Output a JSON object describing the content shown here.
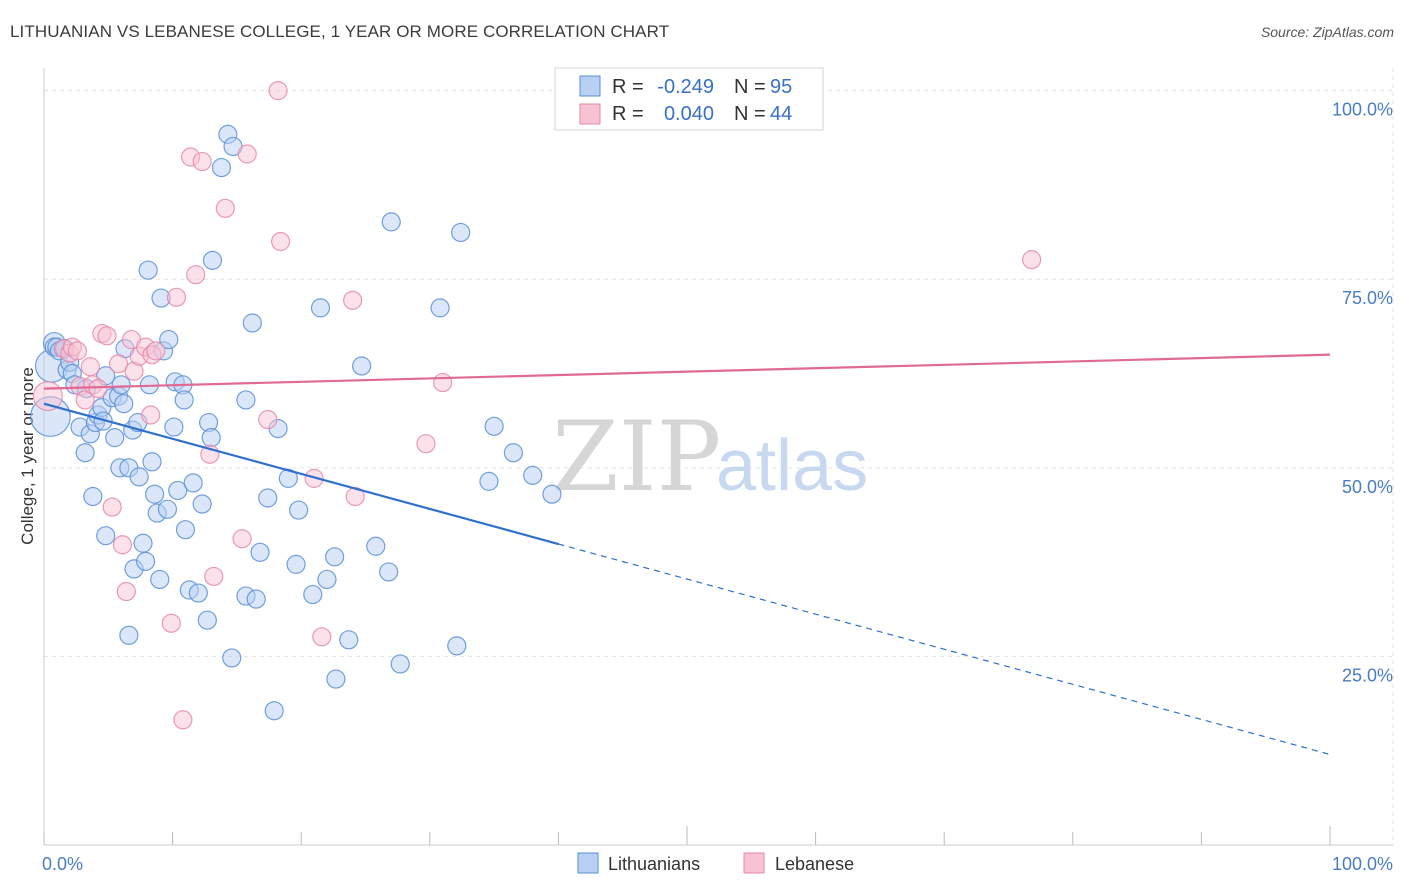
{
  "header": {
    "title": "LITHUANIAN VS LEBANESE COLLEGE, 1 YEAR OR MORE CORRELATION CHART",
    "source": "Source: ZipAtlas.com"
  },
  "watermark": {
    "zip": "ZIP",
    "atlas": "atlas"
  },
  "colors": {
    "blue_fill": "#b7d0f4",
    "blue_stroke": "#5b8fd6",
    "blue_line": "#2f6fce",
    "pink_fill": "#f7c3d3",
    "pink_stroke": "#e48aa9",
    "pink_line": "#e06a92",
    "grid": "#e3e3e3",
    "axis": "#cccccc"
  },
  "legend": {
    "rows": [
      {
        "r_label": "R = ",
        "r_value": "-0.249",
        "n_label": "N = ",
        "n_value": "95"
      },
      {
        "r_label": "R = ",
        "r_value": "0.040",
        "n_label": "N = ",
        "n_value": "44"
      }
    ]
  },
  "chart_data": {
    "type": "scatter",
    "title": "LITHUANIAN VS LEBANESE COLLEGE, 1 YEAR OR MORE CORRELATION CHART",
    "xlabel": "",
    "ylabel": "College, 1 year or more",
    "xlim": [
      0,
      100
    ],
    "ylim": [
      0,
      103
    ],
    "x_tick_labels": [
      "0.0%",
      "100.0%"
    ],
    "y_ticks": [
      25,
      50,
      75,
      100
    ],
    "y_tick_labels": [
      "25.0%",
      "50.0%",
      "75.0%",
      "100.0%"
    ],
    "grid": true,
    "legend_position": "top-center",
    "series": [
      {
        "name": "Lithuanians",
        "r": -0.249,
        "n": 95,
        "trend": {
          "x0": 0,
          "y0": 58.5,
          "x_solid_end": 40,
          "x1": 100,
          "y1": 12.0
        },
        "points": [
          [
            0.5,
            56.8,
            2.2
          ],
          [
            0.6,
            63.5,
            1.8
          ],
          [
            0.8,
            66.5,
            1.2
          ],
          [
            0.8,
            66.0,
            1.0
          ],
          [
            1.0,
            66.0,
            1.0
          ],
          [
            1.2,
            65.5,
            1.0
          ],
          [
            1.6,
            65.8,
            1.0
          ],
          [
            1.8,
            63.0,
            1.0
          ],
          [
            2.0,
            64.0,
            1.0
          ],
          [
            2.2,
            62.5,
            1.0
          ],
          [
            2.4,
            61.0,
            1.0
          ],
          [
            2.8,
            55.4,
            1.0
          ],
          [
            3.2,
            52.0,
            1.0
          ],
          [
            3.3,
            60.5,
            1.0
          ],
          [
            3.6,
            54.5,
            1.0
          ],
          [
            3.8,
            46.2,
            1.0
          ],
          [
            4.0,
            56.0,
            1.0
          ],
          [
            4.2,
            57.0,
            1.0
          ],
          [
            4.5,
            58.0,
            1.0
          ],
          [
            4.6,
            56.2,
            1.0
          ],
          [
            4.8,
            41.0,
            1.0
          ],
          [
            4.8,
            62.2,
            1.0
          ],
          [
            5.3,
            59.3,
            1.0
          ],
          [
            5.5,
            54.0,
            1.0
          ],
          [
            5.8,
            59.5,
            1.0
          ],
          [
            5.9,
            50.0,
            1.0
          ],
          [
            6.0,
            61.0,
            1.0
          ],
          [
            6.2,
            58.5,
            1.0
          ],
          [
            6.3,
            65.8,
            1.0
          ],
          [
            6.6,
            50.0,
            1.0
          ],
          [
            6.6,
            27.8,
            1.0
          ],
          [
            6.9,
            55.0,
            1.0
          ],
          [
            7.0,
            36.6,
            1.0
          ],
          [
            7.3,
            56.0,
            1.0
          ],
          [
            7.4,
            48.8,
            1.0
          ],
          [
            7.7,
            40.0,
            1.0
          ],
          [
            7.9,
            37.6,
            1.0
          ],
          [
            8.1,
            76.2,
            1.0
          ],
          [
            8.2,
            61.0,
            1.0
          ],
          [
            8.4,
            50.8,
            1.0
          ],
          [
            8.6,
            46.5,
            1.0
          ],
          [
            8.8,
            44.0,
            1.0
          ],
          [
            9.0,
            35.2,
            1.0
          ],
          [
            9.1,
            72.5,
            1.0
          ],
          [
            9.3,
            65.5,
            1.0
          ],
          [
            9.6,
            44.5,
            1.0
          ],
          [
            9.7,
            67.0,
            1.0
          ],
          [
            10.1,
            55.4,
            1.0
          ],
          [
            10.2,
            61.4,
            1.0
          ],
          [
            10.4,
            47.0,
            1.0
          ],
          [
            10.8,
            61.0,
            1.0
          ],
          [
            10.9,
            59.0,
            1.0
          ],
          [
            11.0,
            41.8,
            1.0
          ],
          [
            11.3,
            33.8,
            1.0
          ],
          [
            11.6,
            48.0,
            1.0
          ],
          [
            12.0,
            33.4,
            1.0
          ],
          [
            12.3,
            45.2,
            1.0
          ],
          [
            12.7,
            29.8,
            1.0
          ],
          [
            12.8,
            56.0,
            1.0
          ],
          [
            13.0,
            54.0,
            1.0
          ],
          [
            13.1,
            77.5,
            1.0
          ],
          [
            13.8,
            89.8,
            1.0
          ],
          [
            14.3,
            94.2,
            1.0
          ],
          [
            14.6,
            24.8,
            1.0
          ],
          [
            14.7,
            92.6,
            1.0
          ],
          [
            15.7,
            33.0,
            1.0
          ],
          [
            15.7,
            59.0,
            1.0
          ],
          [
            16.2,
            69.2,
            1.0
          ],
          [
            16.5,
            32.6,
            1.0
          ],
          [
            16.8,
            38.8,
            1.0
          ],
          [
            17.4,
            46.0,
            1.0
          ],
          [
            17.9,
            17.8,
            1.0
          ],
          [
            18.2,
            55.2,
            1.0
          ],
          [
            19.0,
            48.6,
            1.0
          ],
          [
            19.6,
            37.2,
            1.0
          ],
          [
            19.8,
            44.4,
            1.0
          ],
          [
            20.9,
            33.2,
            1.0
          ],
          [
            21.5,
            71.2,
            1.0
          ],
          [
            22.0,
            35.2,
            1.0
          ],
          [
            22.7,
            22.0,
            1.0
          ],
          [
            22.6,
            38.2,
            1.0
          ],
          [
            23.7,
            27.2,
            1.0
          ],
          [
            24.7,
            63.5,
            1.0
          ],
          [
            25.8,
            39.6,
            1.0
          ],
          [
            26.8,
            36.2,
            1.0
          ],
          [
            27.0,
            82.6,
            1.0
          ],
          [
            27.7,
            24.0,
            1.0
          ],
          [
            30.8,
            71.2,
            1.0
          ],
          [
            32.1,
            26.4,
            1.0
          ],
          [
            32.4,
            81.2,
            1.0
          ],
          [
            34.6,
            48.2,
            1.0
          ],
          [
            35.0,
            55.5,
            1.0
          ],
          [
            36.5,
            52.0,
            1.0
          ],
          [
            38.0,
            49.0,
            1.0
          ],
          [
            39.5,
            46.5,
            1.0
          ]
        ]
      },
      {
        "name": "Lebanese",
        "r": 0.04,
        "n": 44,
        "trend": {
          "x0": 0,
          "y0": 60.5,
          "x1": 100,
          "y1": 65.0
        },
        "points": [
          [
            0.3,
            59.5,
            1.6
          ],
          [
            1.5,
            65.8,
            1.0
          ],
          [
            2.0,
            65.2,
            1.0
          ],
          [
            2.2,
            66.0,
            1.0
          ],
          [
            2.6,
            65.5,
            1.0
          ],
          [
            2.8,
            60.8,
            1.0
          ],
          [
            3.2,
            59.0,
            1.0
          ],
          [
            3.6,
            63.4,
            1.0
          ],
          [
            3.8,
            61.0,
            1.0
          ],
          [
            4.2,
            60.5,
            1.0
          ],
          [
            4.5,
            67.8,
            1.0
          ],
          [
            4.9,
            67.5,
            1.0
          ],
          [
            5.3,
            44.8,
            1.0
          ],
          [
            5.8,
            63.8,
            1.0
          ],
          [
            6.1,
            39.8,
            1.0
          ],
          [
            6.4,
            33.6,
            1.0
          ],
          [
            6.8,
            67.0,
            1.0
          ],
          [
            7.0,
            62.8,
            1.0
          ],
          [
            7.4,
            64.8,
            1.0
          ],
          [
            7.9,
            66.0,
            1.0
          ],
          [
            8.3,
            57.0,
            1.0
          ],
          [
            8.4,
            65.0,
            1.0
          ],
          [
            8.7,
            65.5,
            1.0
          ],
          [
            9.9,
            29.4,
            1.0
          ],
          [
            10.3,
            72.6,
            1.0
          ],
          [
            10.8,
            16.6,
            1.0
          ],
          [
            11.4,
            91.2,
            1.0
          ],
          [
            11.8,
            75.6,
            1.0
          ],
          [
            12.3,
            90.6,
            1.0
          ],
          [
            12.9,
            51.8,
            1.0
          ],
          [
            13.2,
            35.6,
            1.0
          ],
          [
            14.1,
            84.4,
            1.0
          ],
          [
            15.4,
            40.6,
            1.0
          ],
          [
            15.8,
            91.6,
            1.0
          ],
          [
            17.4,
            56.4,
            1.0
          ],
          [
            18.4,
            80.0,
            1.0
          ],
          [
            18.2,
            100.0,
            1.0
          ],
          [
            21.6,
            27.6,
            1.0
          ],
          [
            21.0,
            48.6,
            1.0
          ],
          [
            24.0,
            72.2,
            1.0
          ],
          [
            24.2,
            46.2,
            1.0
          ],
          [
            29.7,
            53.2,
            1.0
          ],
          [
            31.0,
            61.3,
            1.0
          ],
          [
            76.8,
            77.6,
            1.0
          ]
        ]
      }
    ]
  }
}
